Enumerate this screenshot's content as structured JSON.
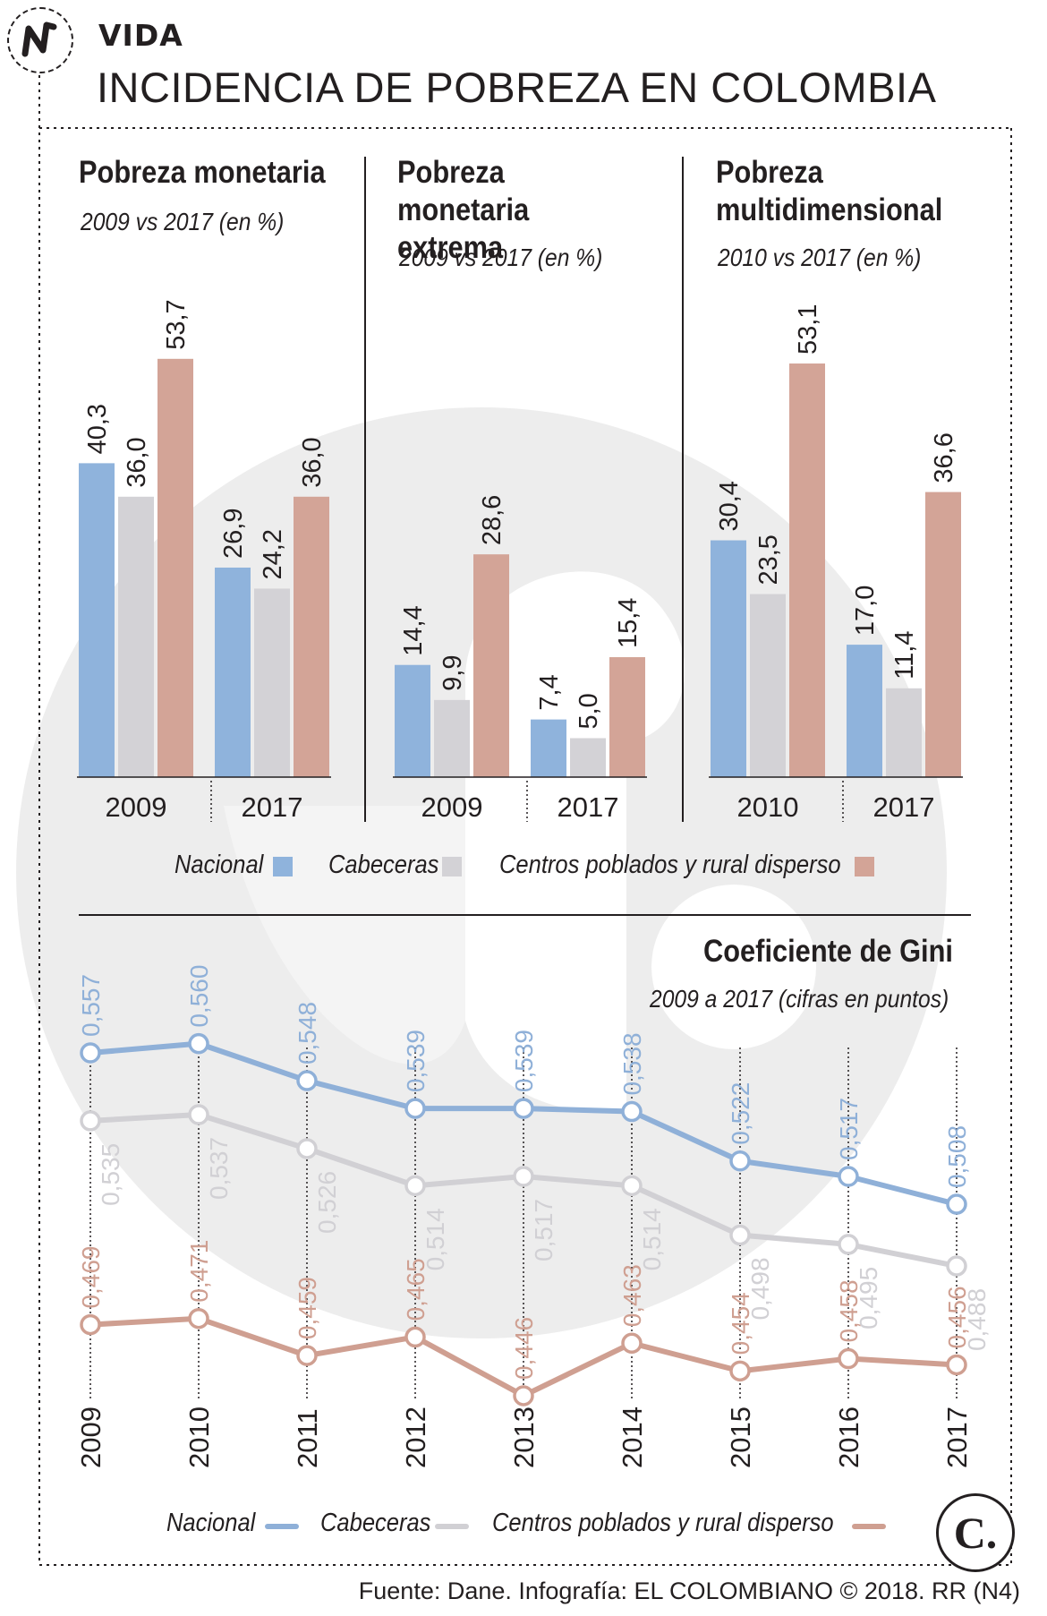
{
  "header": {
    "section": "VIDA",
    "title": "INCIDENCIA DE POBREZA EN COLOMBIA"
  },
  "colors": {
    "nacional": "#8fb3dc",
    "nacional_line": "#8fb0d8",
    "cabeceras": "#d3d2d6",
    "cabeceras_line": "#d1d0d4",
    "rural": "#d3a497",
    "rural_line": "#cf9f91",
    "watermark": "#ececec",
    "text": "#231f20"
  },
  "panels": [
    {
      "title": "Pobreza monetaria",
      "subtitle": "2009 vs 2017 (en %)"
    },
    {
      "title": "Pobreza monetaria extrema",
      "subtitle": "2009 vs 2017 (en %)"
    },
    {
      "title": "Pobreza multidimensional",
      "subtitle": "2010 vs 2017 (en %)"
    }
  ],
  "bar_legend": [
    "Nacional",
    "Cabeceras",
    "Centros poblados y rural disperso"
  ],
  "gini": {
    "title": "Coeficiente de Gini",
    "subtitle": "2009 a 2017 (cifras en puntos)"
  },
  "line_legend": [
    "Nacional",
    "Cabeceras",
    "Centros poblados y rural disperso"
  ],
  "source": "Fuente: Dane. Infografía: EL COLOMBIANO © 2018. RR (N4)",
  "brand": "C.",
  "chart_data": [
    {
      "type": "bar",
      "title": "Pobreza monetaria",
      "subtitle": "2009 vs 2017 (en %)",
      "categories": [
        "2009",
        "2017"
      ],
      "series": [
        {
          "name": "Nacional",
          "values": [
            40.3,
            26.9
          ],
          "labels": [
            "40,3",
            "26,9"
          ]
        },
        {
          "name": "Cabeceras",
          "values": [
            36.0,
            24.2
          ],
          "labels": [
            "36,0",
            "24,2"
          ]
        },
        {
          "name": "Centros poblados y rural disperso",
          "values": [
            53.7,
            36.0
          ],
          "labels": [
            "53,7",
            "36,0"
          ]
        }
      ]
    },
    {
      "type": "bar",
      "title": "Pobreza monetaria extrema",
      "subtitle": "2009 vs 2017 (en %)",
      "categories": [
        "2009",
        "2017"
      ],
      "series": [
        {
          "name": "Nacional",
          "values": [
            14.4,
            7.4
          ],
          "labels": [
            "14,4",
            "7,4"
          ]
        },
        {
          "name": "Cabeceras",
          "values": [
            9.9,
            5.0
          ],
          "labels": [
            "9,9",
            "5,0"
          ]
        },
        {
          "name": "Centros poblados y rural disperso",
          "values": [
            28.6,
            15.4
          ],
          "labels": [
            "28,6",
            "15,4"
          ]
        }
      ]
    },
    {
      "type": "bar",
      "title": "Pobreza multidimensional",
      "subtitle": "2010 vs 2017 (en %)",
      "categories": [
        "2010",
        "2017"
      ],
      "series": [
        {
          "name": "Nacional",
          "values": [
            30.4,
            17.0
          ],
          "labels": [
            "30,4",
            "17,0"
          ]
        },
        {
          "name": "Cabeceras",
          "values": [
            23.5,
            11.4
          ],
          "labels": [
            "23,5",
            "11,4"
          ]
        },
        {
          "name": "Centros poblados y rural disperso",
          "values": [
            53.1,
            36.6
          ],
          "labels": [
            "53,1",
            "36,6"
          ]
        }
      ]
    },
    {
      "type": "line",
      "title": "Coeficiente de Gini",
      "subtitle": "2009 a 2017 (cifras en puntos)",
      "x": [
        "2009",
        "2010",
        "2011",
        "2012",
        "2013",
        "2014",
        "2015",
        "2016",
        "2017"
      ],
      "series": [
        {
          "name": "Nacional",
          "values": [
            0.557,
            0.56,
            0.548,
            0.539,
            0.539,
            0.538,
            0.522,
            0.517,
            0.508
          ],
          "labels": [
            "0,557",
            "0,560",
            "0,548",
            "0,539",
            "0,539",
            "0,538",
            "0,522",
            "0,517",
            "0,508"
          ]
        },
        {
          "name": "Cabeceras",
          "values": [
            0.535,
            0.537,
            0.526,
            0.514,
            0.517,
            0.514,
            0.498,
            0.495,
            0.488
          ],
          "labels": [
            "0,535",
            "0,537",
            "0,526",
            "0,514",
            "0,517",
            "0,514",
            "0,498",
            "0,495",
            "0,488"
          ]
        },
        {
          "name": "Centros poblados y rural disperso",
          "values": [
            0.469,
            0.471,
            0.459,
            0.465,
            0.446,
            0.463,
            0.454,
            0.458,
            0.456
          ],
          "labels": [
            "0,469",
            "0,471",
            "0,459",
            "0,465",
            "0,446",
            "0,463",
            "0,454",
            "0,458",
            "0,456"
          ]
        }
      ]
    }
  ]
}
